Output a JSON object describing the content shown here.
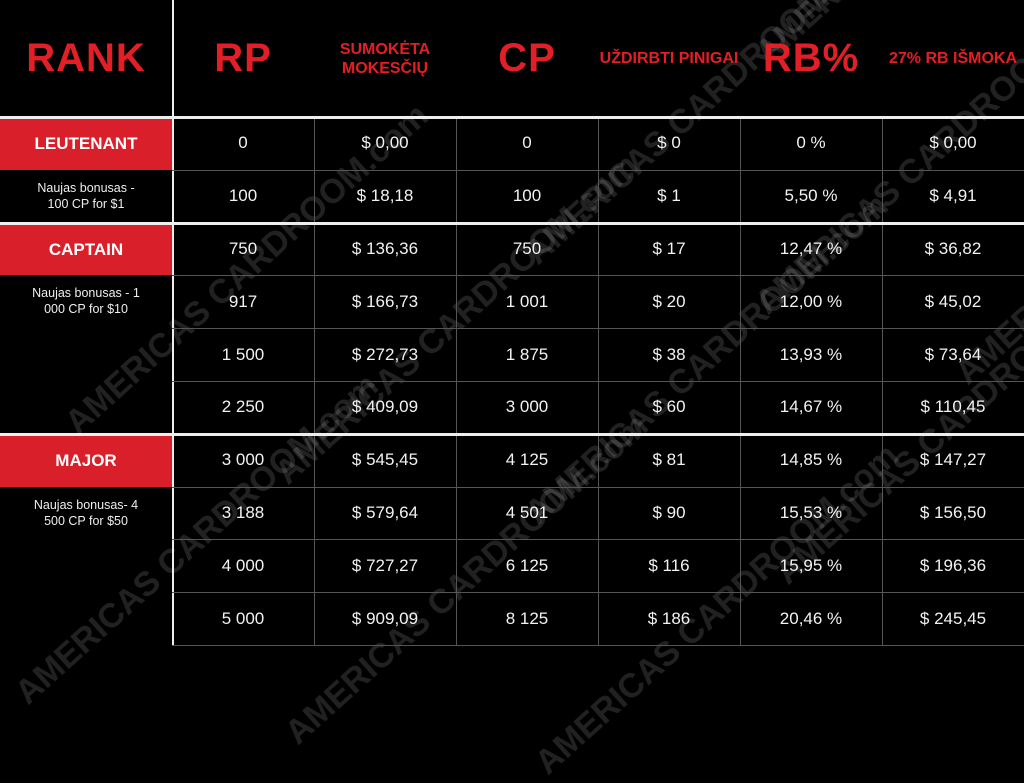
{
  "headers": [
    "RANK",
    "RP",
    "SUMOKĖTA MOKESČIŲ",
    "CP",
    "UŽDIRBTI PINIGAI",
    "RB%",
    "27% RB IŠMOKA"
  ],
  "header_style": [
    "big",
    "big",
    "small",
    "big",
    "small",
    "big",
    "small"
  ],
  "ranks": [
    {
      "label": "LEUTENANT",
      "bonus": "Naujas bonusas - 100 CP for $1",
      "start": 0,
      "rows": 2
    },
    {
      "label": "CAPTAIN",
      "bonus": "Naujas bonusas - 1 000 CP for $10",
      "start": 2,
      "rows": 4
    },
    {
      "label": "MAJOR",
      "bonus": "Naujas bonusas- 4 500 CP for $50",
      "start": 6,
      "rows": 4
    }
  ],
  "rows": [
    [
      "0",
      "$ 0,00",
      "0",
      "$ 0",
      "0 %",
      "$ 0,00"
    ],
    [
      "100",
      "$ 18,18",
      "100",
      "$ 1",
      "5,50 %",
      "$ 4,91"
    ],
    [
      "750",
      "$ 136,36",
      "750",
      "$ 17",
      "12,47 %",
      "$ 36,82"
    ],
    [
      "917",
      "$ 166,73",
      "1 001",
      "$ 20",
      "12,00 %",
      "$ 45,02"
    ],
    [
      "1 500",
      "$ 272,73",
      "1 875",
      "$ 38",
      "13,93 %",
      "$ 73,64"
    ],
    [
      "2 250",
      "$ 409,09",
      "3 000",
      "$ 60",
      "14,67 %",
      "$ 110,45"
    ],
    [
      "3 000",
      "$ 545,45",
      "4 125",
      "$ 81",
      "14,85 %",
      "$ 147,27"
    ],
    [
      "3 188",
      "$ 579,64",
      "4 501",
      "$ 90",
      "15,53 %",
      "$ 156,50"
    ],
    [
      "4 000",
      "$ 727,27",
      "6 125",
      "$ 116",
      "15,95 %",
      "$ 196,36"
    ],
    [
      "5 000",
      "$ 909,09",
      "8 125",
      "$ 186",
      "20,46 %",
      "$ 245,45"
    ]
  ],
  "watermark": "AMERICAS CARDROOM.com",
  "colors": {
    "accent": "#d9202a",
    "header_text": "#e21f26",
    "background": "#000000"
  }
}
